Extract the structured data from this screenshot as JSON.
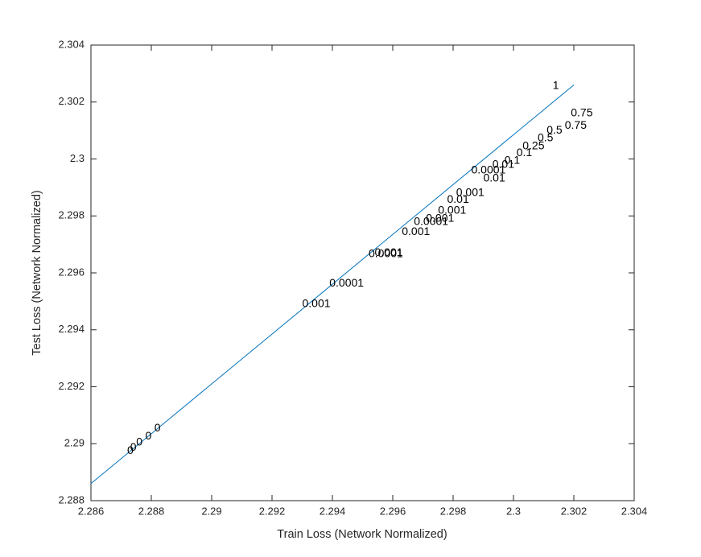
{
  "chart_data": {
    "type": "scatter",
    "xlabel": "Train Loss (Network Normalized)",
    "ylabel": "Test Loss (Network Normalized)",
    "xlim": [
      2.286,
      2.304
    ],
    "ylim": [
      2.288,
      2.304
    ],
    "xticks": [
      2.286,
      2.288,
      2.29,
      2.292,
      2.294,
      2.296,
      2.298,
      2.3,
      2.302,
      2.304
    ],
    "yticks": [
      2.288,
      2.29,
      2.292,
      2.294,
      2.296,
      2.298,
      2.3,
      2.302,
      2.304
    ],
    "x": [
      2.2872,
      2.2873,
      2.2875,
      2.2878,
      2.2881,
      2.293,
      2.2939,
      2.2952,
      2.2954,
      2.2963,
      2.2967,
      2.2971,
      2.2975,
      2.2978,
      2.2981,
      2.2986,
      2.299,
      2.2993,
      2.2997,
      2.3001,
      2.3003,
      2.3008,
      2.3011,
      2.3017,
      2.3019,
      2.3013
    ],
    "y": [
      2.28975,
      2.28986,
      2.29004,
      2.29026,
      2.29054,
      2.2949,
      2.29563,
      2.29665,
      2.2967,
      2.29744,
      2.29778,
      2.2979,
      2.29818,
      2.29857,
      2.2988,
      2.29959,
      2.29931,
      2.29979,
      2.29993,
      2.30021,
      2.30044,
      2.30072,
      2.301,
      2.30117,
      2.3016,
      2.30256
    ],
    "labels": [
      "0",
      "0",
      "0",
      "0",
      "0",
      "0.001",
      "0.0001",
      "0.0001",
      "0.001",
      "0.001",
      "0.0001",
      "0.001",
      "0.001",
      "0.01",
      "0.001",
      "0.0001",
      "0.01",
      "0.01",
      "0.1",
      "0.1",
      "0.25",
      "0.5",
      "0.5",
      "0.75",
      "0.75",
      "1"
    ],
    "fit_line": {
      "color": "#0072bd",
      "x": [
        2.286,
        2.302
      ],
      "y": [
        2.2886,
        2.3026
      ]
    },
    "box": true
  }
}
